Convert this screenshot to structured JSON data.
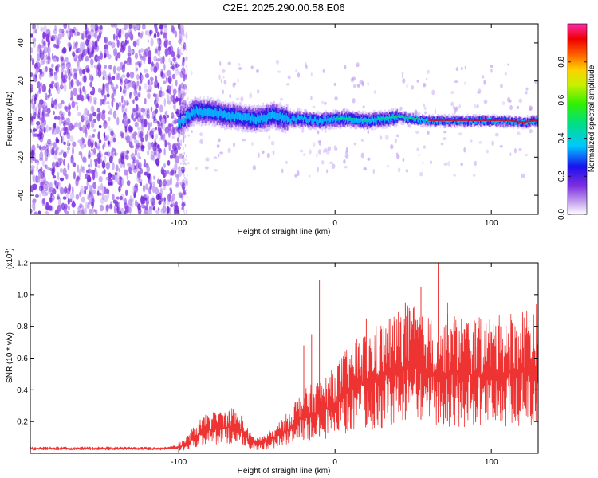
{
  "title": "C2E1.2025.290.00.58.E06",
  "chart_data": [
    {
      "type": "heatmap",
      "xlabel": "Height of straight line (km)",
      "ylabel": "Frequency (Hz)",
      "xlim": [
        -195,
        130
      ],
      "ylim": [
        -50,
        50
      ],
      "xticks": [
        -100,
        0,
        100
      ],
      "yticks": [
        -40,
        -20,
        0,
        20,
        40
      ],
      "ridge": {
        "x": [
          -100,
          -90,
          -80,
          -70,
          -60,
          -50,
          -40,
          -30,
          -20,
          -10,
          0,
          10,
          20,
          30,
          40,
          50,
          60,
          70,
          80,
          90,
          100,
          110,
          120,
          130
        ],
        "freq": [
          -2,
          4,
          4,
          2,
          1,
          0,
          2,
          0,
          0,
          -1,
          0,
          0,
          -1,
          0,
          1,
          0,
          -1,
          -1,
          -1,
          -1,
          -1,
          -1,
          -2,
          -1
        ]
      },
      "colorbar": {
        "label": "Normalized spectral amplitude",
        "range": [
          0,
          1
        ],
        "ticks": [
          "0.0",
          "0.2",
          "0.4",
          "0.6",
          "0.8"
        ],
        "tick_values": [
          0,
          0.2,
          0.4,
          0.6,
          0.8
        ]
      }
    },
    {
      "type": "line",
      "xlabel": "Height of straight line (km)",
      "ylabel": "SNR (10 * v/v)",
      "yscale_label": "(x10",
      "yscale_exp": "4",
      "yscale_close": ")",
      "xlim": [
        -195,
        130
      ],
      "ylim": [
        0,
        1.2
      ],
      "xticks": [
        -100,
        0,
        100
      ],
      "yticks": [
        "0.2",
        "0.4",
        "0.6",
        "0.8",
        "1.0",
        "1.2"
      ],
      "ytick_values": [
        0.2,
        0.4,
        0.6,
        0.8,
        1.0,
        1.2
      ],
      "series": [
        {
          "name": "SNR",
          "color": "#ee3333",
          "x": [
            -195,
            -150,
            -110,
            -100,
            -95,
            -90,
            -85,
            -80,
            -75,
            -70,
            -65,
            -60,
            -55,
            -50,
            -45,
            -40,
            -35,
            -30,
            -25,
            -20,
            -15,
            -10,
            -5,
            0,
            5,
            10,
            15,
            20,
            25,
            30,
            35,
            40,
            45,
            50,
            55,
            60,
            65,
            70,
            75,
            80,
            85,
            90,
            95,
            100,
            105,
            110,
            115,
            120,
            125,
            130
          ],
          "y": [
            0.03,
            0.03,
            0.03,
            0.04,
            0.06,
            0.1,
            0.13,
            0.15,
            0.15,
            0.16,
            0.17,
            0.15,
            0.08,
            0.06,
            0.07,
            0.09,
            0.12,
            0.15,
            0.2,
            0.23,
            0.25,
            0.27,
            0.28,
            0.32,
            0.36,
            0.4,
            0.43,
            0.44,
            0.46,
            0.48,
            0.5,
            0.52,
            0.53,
            0.54,
            0.53,
            0.5,
            0.48,
            0.5,
            0.51,
            0.5,
            0.5,
            0.49,
            0.49,
            0.5,
            0.5,
            0.51,
            0.52,
            0.53,
            0.54,
            0.55
          ]
        }
      ],
      "spikes": [
        {
          "x": -10,
          "y": 1.09
        },
        {
          "x": -20,
          "y": 0.68
        },
        {
          "x": -15,
          "y": 0.75
        },
        {
          "x": 20,
          "y": 0.85
        },
        {
          "x": 45,
          "y": 0.95
        },
        {
          "x": 55,
          "y": 1.05
        },
        {
          "x": 66,
          "y": 1.21
        },
        {
          "x": 72,
          "y": 0.95
        },
        {
          "x": 90,
          "y": 0.82
        },
        {
          "x": 106,
          "y": 0.8
        }
      ]
    }
  ]
}
